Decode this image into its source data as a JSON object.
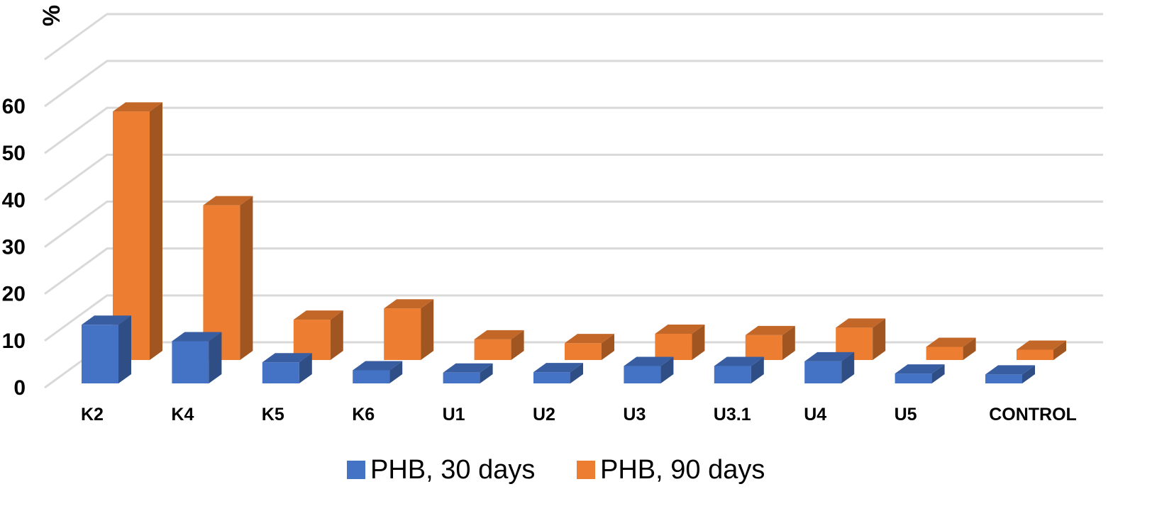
{
  "chart_data": {
    "type": "bar",
    "style": "3d-clustered",
    "ylabel": "%",
    "xlabel": "",
    "ylim": [
      0,
      60
    ],
    "yticks": [
      "0",
      "10",
      "20",
      "30",
      "40",
      "50",
      "60"
    ],
    "grid": true,
    "legend_position": "bottom",
    "categories": [
      "K2",
      "K4",
      "K5",
      "K6",
      "U1",
      "U2",
      "U3",
      "U3.1",
      "U4",
      "U5",
      "CONTROL"
    ],
    "series": [
      {
        "name": "PHB, 30 days",
        "color": "#4472C4",
        "values": [
          12.5,
          9,
          4.5,
          2.8,
          2.3,
          2.4,
          3.7,
          3.7,
          4.7,
          2.1,
          1.9
        ]
      },
      {
        "name": "PHB, 90 days",
        "color": "#ED7D31",
        "values": [
          53,
          33,
          8.6,
          11,
          4.4,
          3.6,
          5.6,
          5.3,
          6.9,
          2.8,
          2.2
        ]
      }
    ]
  }
}
